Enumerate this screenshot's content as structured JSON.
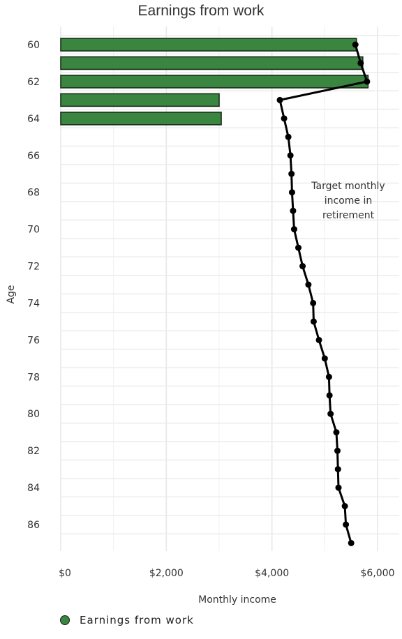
{
  "chart_data": {
    "type": "bar+line",
    "title": "Earnings from work",
    "xlabel": "Monthly income",
    "ylabel": "Age",
    "xlim": [
      0,
      6400
    ],
    "ylim": [
      59,
      88
    ],
    "x_ticks": [
      0,
      2000,
      4000,
      6000
    ],
    "x_tick_labels": [
      "$0",
      "$2,000",
      "$4,000",
      "$6,000"
    ],
    "y_ticks": [
      60,
      62,
      64,
      66,
      68,
      70,
      72,
      74,
      76,
      78,
      80,
      82,
      84,
      86
    ],
    "y_tick_labels": [
      "60",
      "62",
      "64",
      "66",
      "68",
      "70",
      "72",
      "74",
      "76",
      "78",
      "80",
      "82",
      "84",
      "86"
    ],
    "grid": true,
    "legend_position": "bottom-left",
    "bar_series": {
      "name": "Earnings from work",
      "color": "#3a8540",
      "categories": [
        60,
        61,
        62,
        63,
        64
      ],
      "values": [
        5600,
        5720,
        5820,
        3000,
        3040
      ]
    },
    "line_series": {
      "ages": [
        60,
        61,
        62,
        63,
        64,
        65,
        66,
        67,
        68,
        69,
        70,
        71,
        72,
        73,
        74,
        75,
        76,
        77,
        78,
        79,
        80,
        81,
        82,
        83,
        84,
        85,
        86,
        87
      ],
      "values": [
        5580,
        5680,
        5800,
        4150,
        4230,
        4310,
        4350,
        4370,
        4380,
        4400,
        4420,
        4500,
        4580,
        4690,
        4780,
        4790,
        4890,
        5000,
        5080,
        5090,
        5110,
        5220,
        5240,
        5250,
        5260,
        5380,
        5400,
        5500
      ],
      "color": "#000000"
    },
    "annotation": "Target monthly income in retirement"
  }
}
